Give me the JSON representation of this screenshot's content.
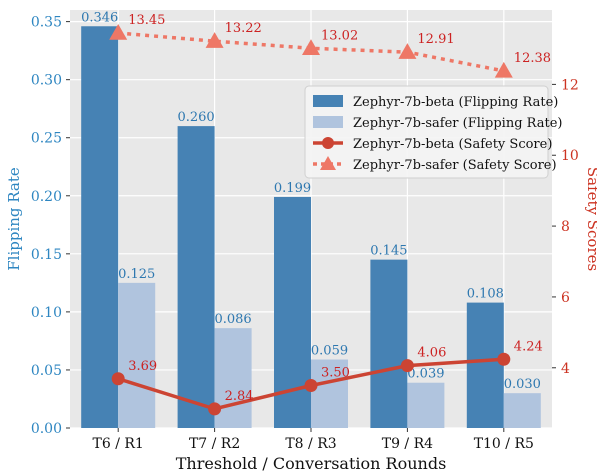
{
  "chart_data": {
    "type": "bar",
    "xlabel": "Threshold / Conversation Rounds",
    "ylabel_left": "Flipping Rate",
    "ylabel_right": "Safety Scores",
    "categories": [
      "T6 / R1",
      "T7 / R2",
      "T8 / R3",
      "T9 / R4",
      "T10 / R5"
    ],
    "ylim_left": [
      0,
      0.36
    ],
    "ylim_right": [
      2.3,
      14.1
    ],
    "yticks_left": [
      "0.00",
      "0.05",
      "0.10",
      "0.15",
      "0.20",
      "0.25",
      "0.30",
      "0.35"
    ],
    "yticks_left_values": [
      0,
      0.05,
      0.1,
      0.15,
      0.2,
      0.25,
      0.3,
      0.35
    ],
    "yticks_right": [
      "4",
      "6",
      "8",
      "10",
      "12"
    ],
    "yticks_right_values": [
      4,
      6,
      8,
      10,
      12
    ],
    "grid": true,
    "legend_position": "upper-right",
    "bar_series": [
      {
        "name": "Zephyr-7b-beta (Flipping Rate)",
        "values": [
          0.346,
          0.26,
          0.199,
          0.145,
          0.108
        ],
        "labels": [
          "0.346",
          "0.260",
          "0.199",
          "0.145",
          "0.108"
        ],
        "color": "#4682b4"
      },
      {
        "name": "Zephyr-7b-safer (Flipping Rate)",
        "values": [
          0.125,
          0.086,
          0.059,
          0.039,
          0.03
        ],
        "labels": [
          "0.125",
          "0.086",
          "0.059",
          "0.039",
          "0.030"
        ],
        "color": "#b0c4de"
      }
    ],
    "line_series": [
      {
        "name": "Zephyr-7b-beta (Safety Score)",
        "values": [
          3.69,
          2.84,
          3.5,
          4.06,
          4.24
        ],
        "labels": [
          "3.69",
          "2.84",
          "3.50",
          "4.06",
          "4.24"
        ],
        "color": "#cc4433",
        "style": "solid",
        "marker": "circle"
      },
      {
        "name": "Zephyr-7b-safer (Safety Score)",
        "values": [
          13.45,
          13.22,
          13.02,
          12.91,
          12.38
        ],
        "labels": [
          "13.45",
          "13.22",
          "13.02",
          "12.91",
          "12.38"
        ],
        "color": "#ee7766",
        "style": "dotted",
        "marker": "triangle"
      }
    ],
    "colors": {
      "left_axis": "#2e86c1",
      "right_axis": "#cc3322",
      "plot_background": "#e8e8e8",
      "grid": "#ffffff",
      "value_label_left": "#2e78b0",
      "value_label_right": "#cc2222"
    }
  }
}
